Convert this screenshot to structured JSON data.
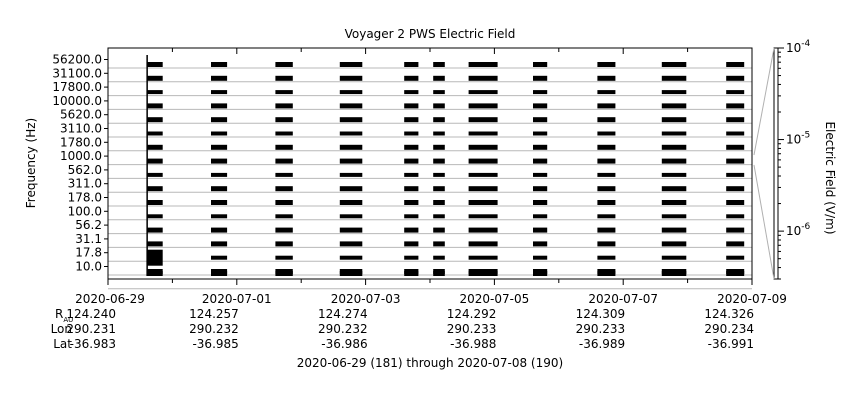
{
  "chart_data": {
    "type": "heatmap",
    "title": "Voyager 2 PWS Electric Field",
    "ylabel": "Frequency (Hz)",
    "colorbar_label": "Electric Field (V/m)",
    "colorbar_range": [
      3e-07,
      0.0001
    ],
    "colorbar_scale": "log",
    "colorbar_ticks": [
      {
        "value": 0.0001,
        "base": "10",
        "exp": "-4"
      },
      {
        "value": 1e-05,
        "base": "10",
        "exp": "-5"
      },
      {
        "value": 1e-06,
        "base": "10",
        "exp": "-6"
      }
    ],
    "x_range_days": [
      0,
      10
    ],
    "y_labels": [
      "56200.0",
      "31100.0",
      "17800.0",
      "10000.0",
      "5620.0",
      "3110.0",
      "1780.0",
      "1000.0",
      "562.0",
      "311.0",
      "178.0",
      "100.0",
      "56.2",
      "31.1",
      "17.8",
      "10.0"
    ],
    "channels": 16,
    "x_ticks": [
      {
        "day": 0,
        "label": "2020-06-29",
        "rau": "124.240",
        "lon": "290.231",
        "lat": "-36.983"
      },
      {
        "day": 2,
        "label": "2020-07-01",
        "rau": "124.257",
        "lon": "290.232",
        "lat": "-36.985"
      },
      {
        "day": 4,
        "label": "2020-07-03",
        "rau": "124.274",
        "lon": "290.232",
        "lat": "-36.986"
      },
      {
        "day": 6,
        "label": "2020-07-05",
        "rau": "124.292",
        "lon": "290.233",
        "lat": "-36.988"
      },
      {
        "day": 8,
        "label": "2020-07-07",
        "rau": "124.309",
        "lon": "290.233",
        "lat": "-36.989"
      },
      {
        "day": 10,
        "label": "2020-07-09",
        "rau": "124.326",
        "lon": "290.234",
        "lat": "-36.991"
      }
    ],
    "row_labels": {
      "rau_base": "R",
      "rau_sub": "AU",
      "lon": "Lon",
      "lat": "Lat"
    },
    "observation_blocks_days": [
      [
        0.6,
        0.85
      ],
      [
        1.6,
        1.85
      ],
      [
        2.6,
        2.87
      ],
      [
        3.6,
        3.95
      ],
      [
        4.6,
        4.82
      ],
      [
        5.05,
        5.23
      ],
      [
        5.6,
        6.05
      ],
      [
        6.6,
        6.82
      ],
      [
        7.6,
        7.88
      ],
      [
        8.6,
        8.98
      ],
      [
        9.6,
        9.88
      ]
    ],
    "date_range_label": "2020-06-29 (181) through 2020-07-08 (190)",
    "grid": true
  }
}
